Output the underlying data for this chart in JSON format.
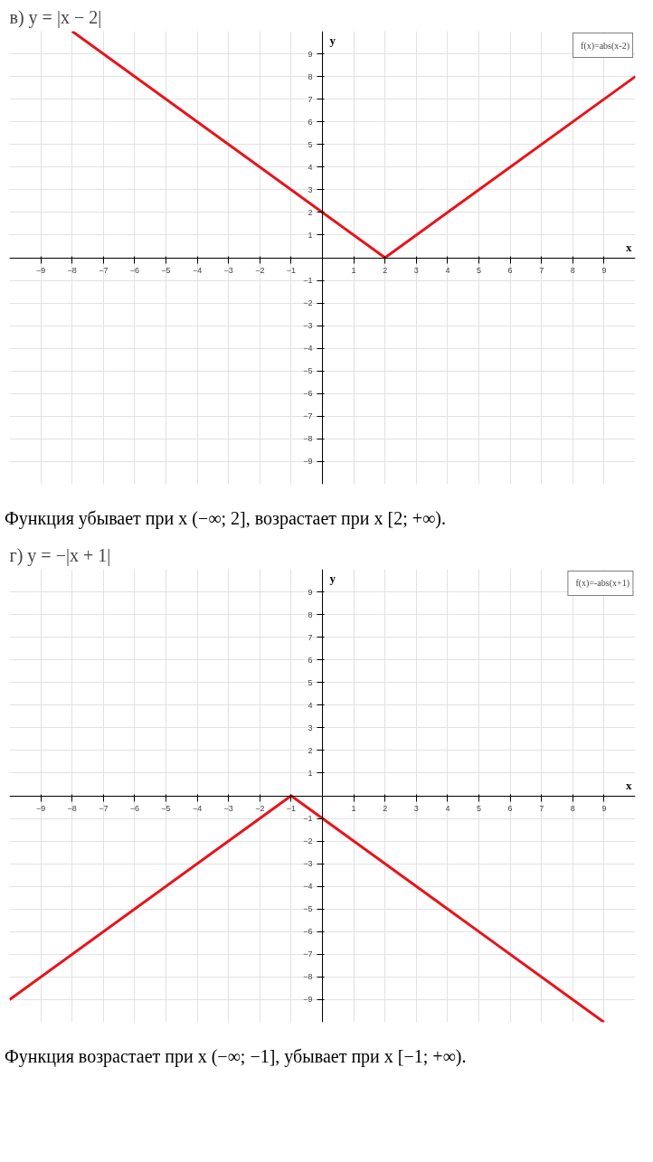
{
  "chart_data": [
    {
      "type": "line",
      "title": "в) y = |x − 2|",
      "xlabel": "x",
      "ylabel": "y",
      "x": [
        -8,
        2,
        10
      ],
      "series": [
        {
          "name": "f(x)=abs(x-2)",
          "color": "#e8141b",
          "values": [
            10,
            0,
            8
          ]
        }
      ],
      "xlim": [
        -10,
        10
      ],
      "ylim": [
        -10,
        10
      ],
      "xticks": [
        -9,
        -8,
        -7,
        -6,
        -5,
        -4,
        -3,
        -2,
        -1,
        1,
        2,
        3,
        4,
        5,
        6,
        7,
        8,
        9
      ],
      "yticks": [
        -9,
        -8,
        -7,
        -6,
        -5,
        -4,
        -3,
        -2,
        -1,
        1,
        2,
        3,
        4,
        5,
        6,
        7,
        8,
        9
      ],
      "grid": true,
      "legend": "top right",
      "marker": "none",
      "line_style": "solid",
      "annotations": [
        "Функция убывает при x (−∞; 2], возрастает при x [2; +∞)."
      ]
    },
    {
      "type": "line",
      "title": "г) y = −|x + 1|",
      "xlabel": "x",
      "ylabel": "y",
      "x": [
        -10,
        -1,
        9
      ],
      "series": [
        {
          "name": "f(x)=-abs(x+1)",
          "color": "#e8141b",
          "values": [
            -9,
            0,
            -10
          ]
        }
      ],
      "xlim": [
        -10,
        10
      ],
      "ylim": [
        -10,
        10
      ],
      "xticks": [
        -9,
        -8,
        -7,
        -6,
        -5,
        -4,
        -3,
        -2,
        -1,
        1,
        2,
        3,
        4,
        5,
        6,
        7,
        8,
        9
      ],
      "yticks": [
        -9,
        -8,
        -7,
        -6,
        -5,
        -4,
        -3,
        -2,
        -1,
        1,
        2,
        3,
        4,
        5,
        6,
        7,
        8,
        9
      ],
      "grid": true,
      "legend": "top right",
      "marker": "none",
      "line_style": "solid",
      "annotations": [
        "Функция возрастает при x (−∞; −1], убывает при x [−1; +∞)."
      ]
    }
  ]
}
